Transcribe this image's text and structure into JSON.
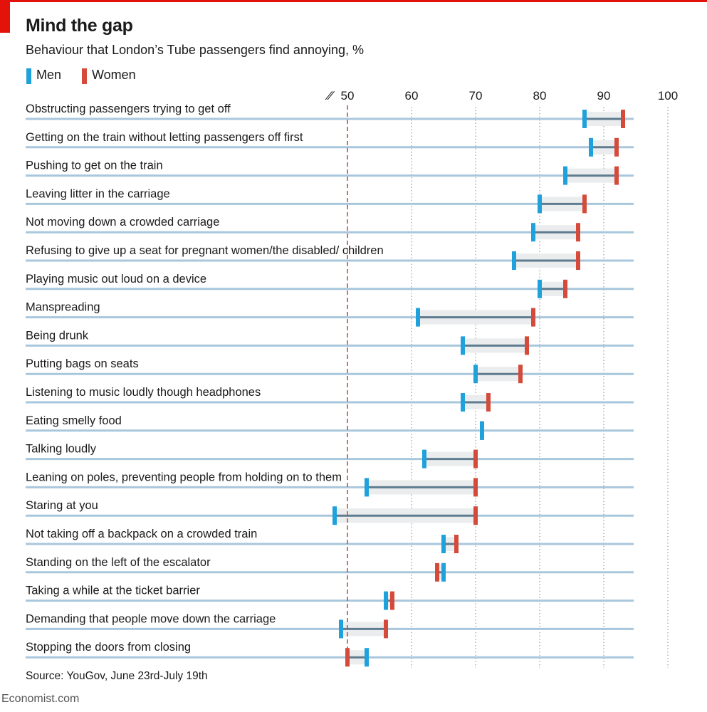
{
  "title": "Mind the gap",
  "subtitle": "Behaviour that London’s Tube passengers find annoying, %",
  "legend": {
    "men": "Men",
    "women": "Women"
  },
  "source": "Source: YouGov, June 23rd-July 19th",
  "footer": "Economist.com",
  "colors": {
    "brand_red": "#e3120b",
    "men": "#1fa1dc",
    "women": "#d44b3b",
    "row_line": "#a9c7dc",
    "gap_fill": "#eaeced",
    "connector": "#5e7b8f",
    "gridline": "#9a9a9a",
    "reference_line": "#d44b3b"
  },
  "chart_data": {
    "type": "dumbbell",
    "title": "Mind the gap",
    "subtitle": "Behaviour that London’s Tube passengers find annoying, %",
    "x_axis": {
      "min": 50,
      "max": 100,
      "ticks": [
        50,
        60,
        70,
        80,
        90,
        100
      ],
      "tick_labels": [
        "50",
        "60",
        "70",
        "80",
        "90",
        "100"
      ],
      "broken_axis_symbol": "∕∕",
      "reference_line": 50
    },
    "series": [
      {
        "name": "Men",
        "key": "men"
      },
      {
        "name": "Women",
        "key": "women"
      }
    ],
    "rows": [
      {
        "label": "Obstructing passengers trying to get off",
        "men": 87,
        "women": 93
      },
      {
        "label": "Getting on the train without letting passengers off first",
        "men": 88,
        "women": 92
      },
      {
        "label": "Pushing to get on the train",
        "men": 84,
        "women": 92
      },
      {
        "label": "Leaving litter in the carriage",
        "men": 80,
        "women": 87
      },
      {
        "label": "Not moving down a crowded carriage",
        "men": 79,
        "women": 86
      },
      {
        "label": "Refusing to give up a seat for pregnant women/the disabled/ children",
        "men": 76,
        "women": 86
      },
      {
        "label": "Playing music out loud on a device",
        "men": 80,
        "women": 84
      },
      {
        "label": "Manspreading",
        "men": 61,
        "women": 79
      },
      {
        "label": "Being drunk",
        "men": 68,
        "women": 78
      },
      {
        "label": "Putting bags on seats",
        "men": 70,
        "women": 77
      },
      {
        "label": "Listening to music loudly though headphones",
        "men": 68,
        "women": 72
      },
      {
        "label": "Eating smelly food",
        "men": 71,
        "women": 71
      },
      {
        "label": "Talking loudly",
        "men": 62,
        "women": 70
      },
      {
        "label": "Leaning on poles, preventing people from holding on to them",
        "men": 53,
        "women": 70
      },
      {
        "label": "Staring at you",
        "men": 48,
        "women": 70
      },
      {
        "label": "Not taking off a backpack on a crowded train",
        "men": 65,
        "women": 67
      },
      {
        "label": "Standing on the left of the escalator",
        "men": 65,
        "women": 64
      },
      {
        "label": "Taking a while at the ticket barrier",
        "men": 56,
        "women": 57
      },
      {
        "label": "Demanding that people move down the carriage",
        "men": 49,
        "women": 56
      },
      {
        "label": "Stopping the doors from closing",
        "men": 53,
        "women": 50
      }
    ]
  }
}
